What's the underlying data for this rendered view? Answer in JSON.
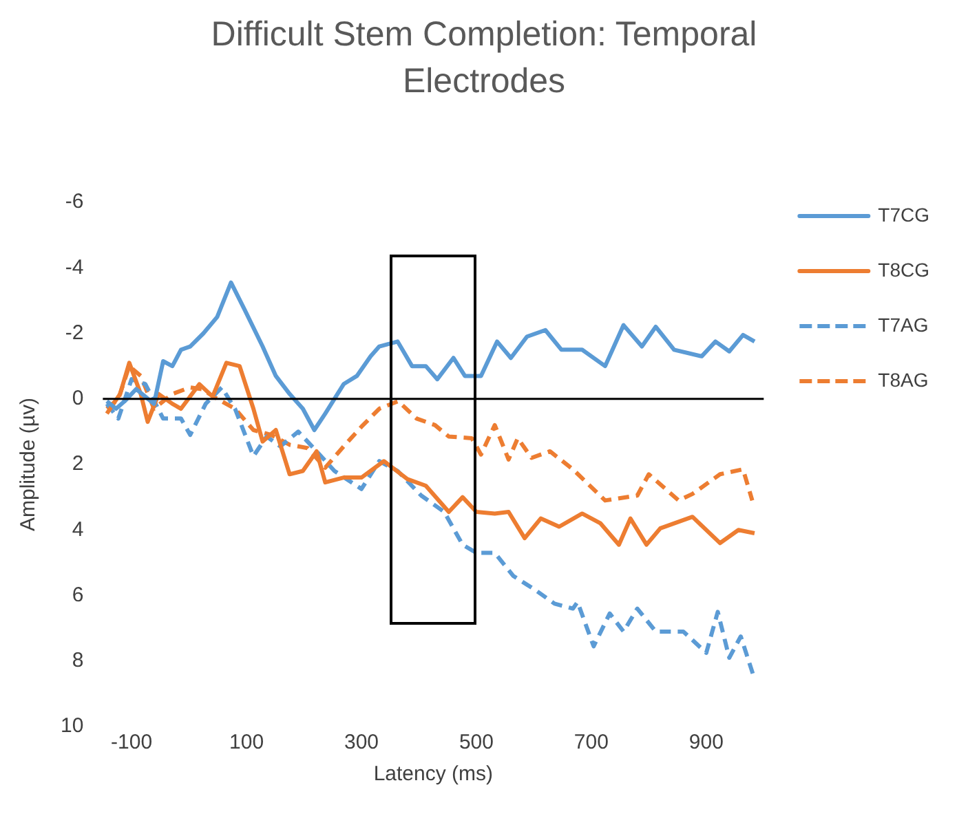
{
  "chart_data": {
    "type": "line",
    "title": "Difficult Stem Completion: Temporal Electrodes",
    "xlabel": "Latency (ms)",
    "ylabel": "Amplitude (µv)",
    "xlim": [
      -150,
      1000
    ],
    "xticks": [
      -100,
      100,
      300,
      500,
      700,
      900
    ],
    "ylim": [
      10,
      -6
    ],
    "yticks": [
      -6,
      -4,
      -2,
      0,
      2,
      4,
      6,
      8,
      10
    ],
    "grid": false,
    "legend": "right",
    "marker": "none",
    "ref_lines": [
      {
        "axis": "y",
        "value": 0,
        "color": "#000000"
      }
    ],
    "series": [
      {
        "name": "T7CG",
        "color": "#5b9bd5",
        "line_style": "solid",
        "x": [
          -143,
          -127,
          -112,
          -92,
          -61,
          -45,
          -29,
          -14,
          2,
          25,
          49,
          73,
          96,
          128,
          151,
          175,
          198,
          218,
          237,
          269,
          292,
          316,
          331,
          363,
          388,
          412,
          432,
          460,
          480,
          508,
          536,
          560,
          588,
          620,
          648,
          684,
          724,
          756,
          788,
          812,
          844,
          892,
          916,
          940,
          964,
          984
        ],
        "values": [
          0.07,
          0.3,
          0.07,
          -0.3,
          0.15,
          -1.15,
          -1.0,
          -1.5,
          -1.6,
          -2.0,
          -2.5,
          -3.55,
          -2.75,
          -1.6,
          -0.7,
          -0.15,
          0.3,
          0.95,
          0.45,
          -0.45,
          -0.7,
          -1.3,
          -1.6,
          -1.75,
          -1.0,
          -1.0,
          -0.6,
          -1.25,
          -0.7,
          -0.7,
          -1.75,
          -1.25,
          -1.9,
          -2.1,
          -1.5,
          -1.5,
          -1.0,
          -2.25,
          -1.6,
          -2.2,
          -1.5,
          -1.3,
          -1.75,
          -1.45,
          -1.95,
          -1.75
        ]
      },
      {
        "name": "T8CG",
        "color": "#ed7d31",
        "line_style": "solid",
        "x": [
          -143,
          -120,
          -104,
          -84,
          -72,
          -53,
          -29,
          -14,
          18,
          41,
          65,
          88,
          112,
          128,
          151,
          175,
          198,
          222,
          237,
          269,
          300,
          339,
          380,
          412,
          452,
          476,
          500,
          532,
          556,
          584,
          612,
          644,
          684,
          716,
          748,
          768,
          796,
          820,
          876,
          924,
          956,
          984
        ],
        "values": [
          0.45,
          -0.15,
          -1.1,
          -0.15,
          0.7,
          -0.15,
          0.15,
          0.3,
          -0.45,
          -0.07,
          -1.1,
          -1.0,
          0.3,
          1.3,
          0.95,
          2.3,
          2.2,
          1.6,
          2.55,
          2.4,
          2.4,
          1.9,
          2.45,
          2.65,
          3.45,
          3.0,
          3.45,
          3.5,
          3.45,
          4.25,
          3.65,
          3.9,
          3.5,
          3.8,
          4.45,
          3.65,
          4.45,
          3.95,
          3.6,
          4.4,
          4.0,
          4.1
        ]
      },
      {
        "name": "T7AG",
        "color": "#5b9bd5",
        "line_style": "dashed",
        "x": [
          -143,
          -123,
          -100,
          -76,
          -45,
          -14,
          2,
          29,
          57,
          80,
          112,
          135,
          159,
          190,
          222,
          253,
          300,
          331,
          363,
          404,
          444,
          476,
          500,
          532,
          564,
          604,
          636,
          668,
          676,
          704,
          732,
          756,
          780,
          812,
          860,
          900,
          920,
          940,
          960,
          984
        ],
        "values": [
          0.15,
          0.6,
          -0.6,
          -0.45,
          0.6,
          0.6,
          1.1,
          0.15,
          -0.35,
          0.3,
          1.75,
          1.15,
          1.45,
          1.0,
          1.6,
          2.2,
          2.75,
          1.9,
          2.2,
          2.95,
          3.45,
          4.45,
          4.7,
          4.7,
          5.4,
          5.85,
          6.25,
          6.4,
          6.2,
          7.55,
          6.55,
          7.1,
          6.4,
          7.1,
          7.1,
          7.75,
          6.5,
          7.9,
          7.25,
          8.55
        ]
      },
      {
        "name": "T8AG",
        "color": "#ed7d31",
        "line_style": "dashed",
        "x": [
          -143,
          -123,
          -104,
          -84,
          -61,
          -29,
          2,
          22,
          49,
          80,
          112,
          143,
          175,
          206,
          237,
          269,
          300,
          331,
          364,
          396,
          428,
          452,
          492,
          508,
          532,
          556,
          572,
          596,
          628,
          668,
          724,
          780,
          800,
          852,
          876,
          924,
          964,
          980
        ],
        "values": [
          0.3,
          0,
          -1.0,
          -0.7,
          0.3,
          -0.15,
          -0.35,
          -0.3,
          0,
          0.3,
          0.95,
          1.1,
          1.4,
          1.5,
          2.1,
          1.45,
          0.85,
          0.3,
          0.07,
          0.6,
          0.8,
          1.15,
          1.2,
          1.7,
          0.8,
          1.85,
          1.2,
          1.8,
          1.6,
          2.15,
          3.1,
          2.95,
          2.3,
          3.1,
          2.9,
          2.3,
          2.15,
          3.1
        ]
      }
    ]
  }
}
